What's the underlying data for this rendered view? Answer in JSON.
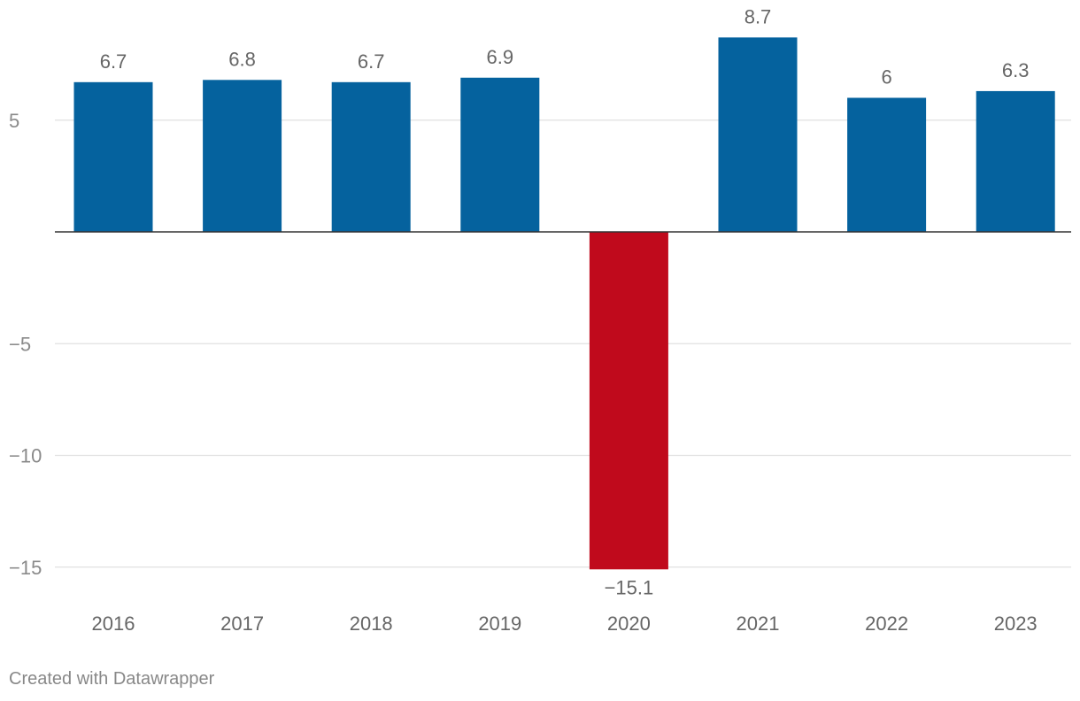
{
  "chart_data": {
    "type": "bar",
    "title": "",
    "xlabel": "",
    "ylabel": "",
    "categories": [
      "2016",
      "2017",
      "2018",
      "2019",
      "2020",
      "2021",
      "2022",
      "2023"
    ],
    "values": [
      6.7,
      6.8,
      6.7,
      6.9,
      -15.1,
      8.7,
      6,
      6.3
    ],
    "value_labels": [
      "6.7",
      "6.8",
      "6.7",
      "6.9",
      "−15.1",
      "8.7",
      "6",
      "6.3"
    ],
    "ylim": [
      -16.5,
      10.5
    ],
    "y_ticks": [
      {
        "value": 5,
        "label": "5"
      },
      {
        "value": -5,
        "label": "−5"
      },
      {
        "value": -10,
        "label": "−10"
      },
      {
        "value": -15,
        "label": "−15"
      }
    ],
    "grid": true,
    "colors": {
      "positive": "#05629e",
      "negative": "#c00a1c"
    }
  },
  "footer": {
    "credit": "Created with Datawrapper"
  }
}
